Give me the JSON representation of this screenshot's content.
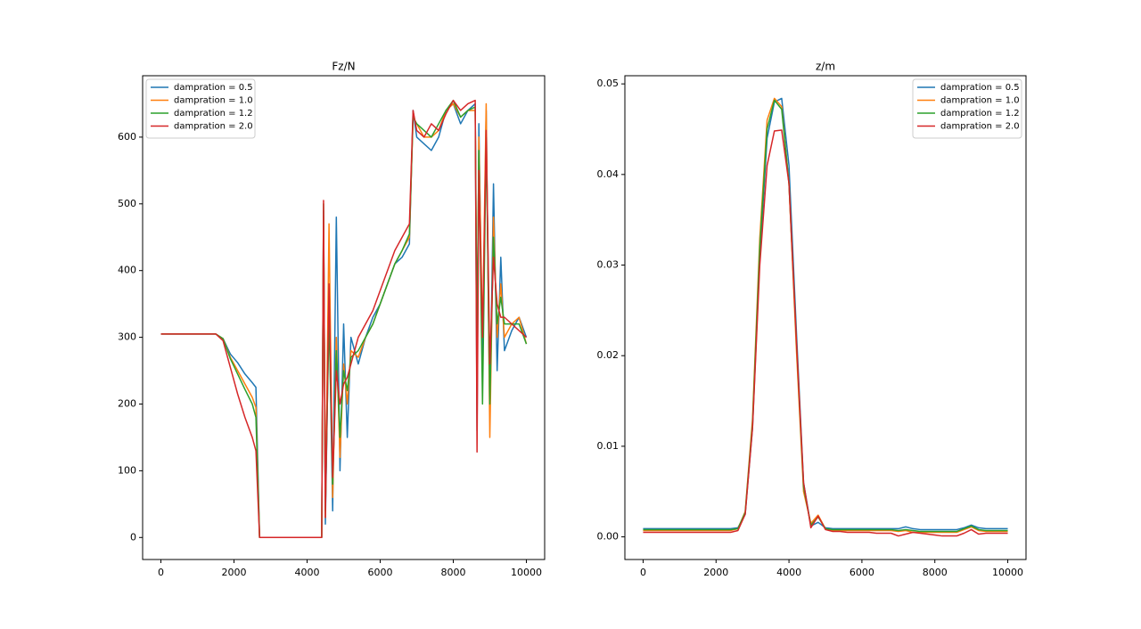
{
  "chart_data": [
    {
      "type": "line",
      "title": "Fz/N",
      "legend": "upper left",
      "x": [
        0,
        500,
        1000,
        1500,
        1700,
        1900,
        2100,
        2300,
        2500,
        2600,
        2700,
        2800,
        3500,
        4400,
        4450,
        4500,
        4600,
        4700,
        4800,
        4900,
        5000,
        5100,
        5200,
        5400,
        5600,
        5800,
        6000,
        6200,
        6400,
        6600,
        6800,
        6900,
        7000,
        7200,
        7400,
        7600,
        7800,
        8000,
        8200,
        8400,
        8600,
        8650,
        8700,
        8800,
        8900,
        9000,
        9100,
        9200,
        9300,
        9400,
        9600,
        9800,
        10000
      ],
      "series": [
        {
          "name": "dampration = 0.5",
          "color": "#1f77b4",
          "values": [
            305,
            305,
            305,
            305,
            298,
            275,
            262,
            245,
            232,
            225,
            0,
            0,
            0,
            0,
            490,
            20,
            350,
            40,
            480,
            100,
            320,
            150,
            300,
            260,
            300,
            330,
            350,
            380,
            410,
            420,
            440,
            640,
            600,
            590,
            580,
            600,
            640,
            650,
            620,
            640,
            650,
            160,
            620,
            250,
            640,
            180,
            530,
            250,
            420,
            280,
            310,
            330,
            300
          ]
        },
        {
          "name": "dampration = 1.0",
          "color": "#ff7f0e",
          "values": [
            305,
            305,
            305,
            305,
            298,
            270,
            250,
            230,
            210,
            195,
            0,
            0,
            0,
            0,
            480,
            30,
            470,
            60,
            300,
            120,
            260,
            200,
            280,
            270,
            300,
            320,
            350,
            380,
            410,
            430,
            450,
            630,
            620,
            600,
            600,
            610,
            640,
            650,
            630,
            640,
            640,
            250,
            600,
            300,
            650,
            150,
            480,
            300,
            380,
            300,
            320,
            330,
            290
          ]
        },
        {
          "name": "dampration = 1.2",
          "color": "#2ca02c",
          "values": [
            305,
            305,
            305,
            305,
            298,
            268,
            245,
            222,
            200,
            180,
            0,
            0,
            0,
            0,
            500,
            40,
            330,
            80,
            280,
            150,
            250,
            220,
            270,
            280,
            300,
            320,
            350,
            380,
            410,
            430,
            455,
            630,
            620,
            610,
            600,
            620,
            640,
            655,
            630,
            640,
            645,
            300,
            580,
            200,
            600,
            200,
            450,
            320,
            360,
            320,
            320,
            320,
            290
          ]
        },
        {
          "name": "dampration = 2.0",
          "color": "#d62728",
          "values": [
            305,
            305,
            305,
            305,
            295,
            255,
            215,
            180,
            150,
            130,
            0,
            0,
            0,
            0,
            505,
            30,
            380,
            90,
            250,
            200,
            230,
            240,
            260,
            300,
            320,
            340,
            370,
            400,
            430,
            450,
            470,
            640,
            610,
            600,
            620,
            610,
            635,
            655,
            640,
            650,
            655,
            128,
            550,
            300,
            610,
            260,
            420,
            350,
            330,
            330,
            320,
            310,
            300
          ]
        }
      ],
      "xlim": [
        -500,
        10500
      ],
      "ylim": [
        -33,
        692
      ],
      "xticks": [
        0,
        2000,
        4000,
        6000,
        8000,
        10000
      ],
      "yticks": [
        0,
        100,
        200,
        300,
        400,
        500,
        600
      ]
    },
    {
      "type": "line",
      "title": "z/m",
      "legend": "upper right",
      "x": [
        0,
        200,
        400,
        600,
        800,
        1000,
        1200,
        1400,
        1600,
        1800,
        2000,
        2200,
        2400,
        2600,
        2800,
        3000,
        3200,
        3400,
        3600,
        3800,
        4000,
        4200,
        4400,
        4600,
        4800,
        5000,
        5200,
        5400,
        5600,
        5800,
        6000,
        6200,
        6400,
        6600,
        6800,
        7000,
        7200,
        7400,
        7600,
        7800,
        8000,
        8200,
        8400,
        8600,
        8800,
        9000,
        9200,
        9400,
        9600,
        9800,
        10000
      ],
      "series": [
        {
          "name": "dampration = 0.5",
          "color": "#1f77b4",
          "values": [
            0.0009,
            0.0009,
            0.0009,
            0.0009,
            0.0009,
            0.0009,
            0.0009,
            0.0009,
            0.0009,
            0.0009,
            0.0009,
            0.0009,
            0.0009,
            0.001,
            0.0025,
            0.012,
            0.031,
            0.044,
            0.048,
            0.0484,
            0.041,
            0.023,
            0.006,
            0.0012,
            0.0016,
            0.001,
            0.0009,
            0.0009,
            0.0009,
            0.0009,
            0.0009,
            0.0009,
            0.0009,
            0.0009,
            0.0009,
            0.0009,
            0.0011,
            0.0009,
            0.0008,
            0.0008,
            0.0008,
            0.0008,
            0.0008,
            0.0008,
            0.001,
            0.0013,
            0.001,
            0.0009,
            0.0009,
            0.0009,
            0.0009
          ]
        },
        {
          "name": "dampration = 1.0",
          "color": "#ff7f0e",
          "values": [
            0.0007,
            0.0007,
            0.0007,
            0.0007,
            0.0007,
            0.0007,
            0.0007,
            0.0007,
            0.0007,
            0.0007,
            0.0007,
            0.0007,
            0.0007,
            0.0009,
            0.0028,
            0.013,
            0.033,
            0.046,
            0.0484,
            0.0475,
            0.039,
            0.021,
            0.005,
            0.0015,
            0.0024,
            0.0009,
            0.0007,
            0.0007,
            0.0007,
            0.0007,
            0.0007,
            0.0007,
            0.0007,
            0.0007,
            0.0007,
            0.0006,
            0.0007,
            0.0005,
            0.0005,
            0.0005,
            0.0005,
            0.0005,
            0.0005,
            0.0005,
            0.0008,
            0.0011,
            0.0007,
            0.0006,
            0.0006,
            0.0006,
            0.0006
          ]
        },
        {
          "name": "dampration = 1.2",
          "color": "#2ca02c",
          "values": [
            0.0008,
            0.0008,
            0.0008,
            0.0008,
            0.0008,
            0.0008,
            0.0008,
            0.0008,
            0.0008,
            0.0008,
            0.0008,
            0.0008,
            0.0008,
            0.0009,
            0.0027,
            0.0125,
            0.032,
            0.045,
            0.0482,
            0.0472,
            0.039,
            0.022,
            0.0055,
            0.0013,
            0.0022,
            0.0009,
            0.0008,
            0.0008,
            0.0008,
            0.0008,
            0.0008,
            0.0008,
            0.0008,
            0.0008,
            0.0008,
            0.0007,
            0.0008,
            0.0007,
            0.0006,
            0.0006,
            0.0006,
            0.0006,
            0.0006,
            0.0006,
            0.0009,
            0.0012,
            0.0008,
            0.0007,
            0.0007,
            0.0007,
            0.0007
          ]
        },
        {
          "name": "dampration = 2.0",
          "color": "#d62728",
          "values": [
            0.0005,
            0.0005,
            0.0005,
            0.0005,
            0.0005,
            0.0005,
            0.0005,
            0.0005,
            0.0005,
            0.0005,
            0.0005,
            0.0005,
            0.0005,
            0.0007,
            0.0025,
            0.012,
            0.03,
            0.041,
            0.0448,
            0.0449,
            0.039,
            0.022,
            0.006,
            0.001,
            0.0023,
            0.0008,
            0.0006,
            0.0006,
            0.0005,
            0.0005,
            0.0005,
            0.0005,
            0.0004,
            0.0004,
            0.0004,
            0.0001,
            0.0003,
            0.0005,
            0.0004,
            0.0003,
            0.0002,
            0.0001,
            0.0001,
            0.0001,
            0.0004,
            0.0008,
            0.0003,
            0.0004,
            0.0004,
            0.0004,
            0.0004
          ]
        }
      ],
      "xlim": [
        -500,
        10500
      ],
      "ylim": [
        -0.0025,
        0.0509
      ],
      "xticks": [
        0,
        2000,
        4000,
        6000,
        8000,
        10000
      ],
      "yticks": [
        {
          "value": 0,
          "label": "0.00"
        },
        {
          "value": 0.01,
          "label": "0.01"
        },
        {
          "value": 0.02,
          "label": "0.02"
        },
        {
          "value": 0.03,
          "label": "0.03"
        },
        {
          "value": 0.04,
          "label": "0.04"
        },
        {
          "value": 0.05,
          "label": "0.05"
        }
      ]
    }
  ]
}
